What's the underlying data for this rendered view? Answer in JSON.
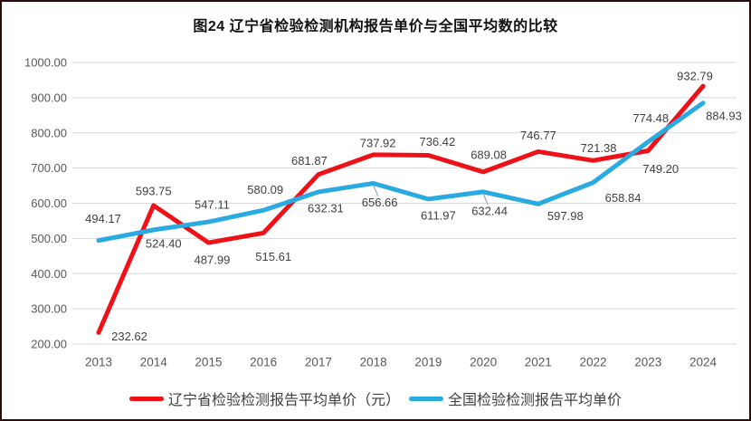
{
  "chart_data": {
    "type": "line",
    "title": "图24 辽宁省检验检测机构报告单价与全国平均数的比较",
    "categories": [
      "2013",
      "2014",
      "2015",
      "2016",
      "2017",
      "2018",
      "2019",
      "2020",
      "2021",
      "2022",
      "2023",
      "2024"
    ],
    "ylim": [
      200,
      1000
    ],
    "yticks": [
      "1000.00",
      "900.00",
      "800.00",
      "700.00",
      "600.00",
      "500.00",
      "400.00",
      "300.00",
      "200.00"
    ],
    "grid": true,
    "legend_position": "bottom",
    "grid_color": "#d9d9d9",
    "axis_color": "#595959",
    "label_color": "#404040",
    "leader_color": "#a6a6a6",
    "series": [
      {
        "name": "辽宁省检验检测报告平均单价（元）",
        "color": "#ee1118",
        "values": [
          232.62,
          593.75,
          487.99,
          515.61,
          681.87,
          737.92,
          736.42,
          689.08,
          746.77,
          721.38,
          749.2,
          932.79
        ],
        "label_offsets": [
          [
            34,
            4
          ],
          [
            0,
            -16
          ],
          [
            4,
            19
          ],
          [
            11,
            26
          ],
          [
            -10,
            -15
          ],
          [
            5,
            -13
          ],
          [
            10,
            -15
          ],
          [
            6,
            -19
          ],
          [
            0,
            -18
          ],
          [
            6,
            -14
          ],
          [
            14,
            20
          ],
          [
            -9,
            -11
          ]
        ],
        "leaders": []
      },
      {
        "name": "全国检验检测报告平均单价",
        "color": "#29abe2",
        "values": [
          494.17,
          524.4,
          547.11,
          580.09,
          632.31,
          656.66,
          611.97,
          632.44,
          597.98,
          658.84,
          774.48,
          884.93
        ],
        "label_offsets": [
          [
            5,
            -24
          ],
          [
            11,
            15
          ],
          [
            4,
            -19
          ],
          [
            2,
            -23
          ],
          [
            8,
            18
          ],
          [
            7,
            21
          ],
          [
            11,
            18
          ],
          [
            7,
            21
          ],
          [
            30,
            13
          ],
          [
            33,
            17
          ],
          [
            3,
            -26
          ],
          [
            23,
            14
          ]
        ],
        "leaders": [
          5,
          7
        ]
      }
    ]
  }
}
